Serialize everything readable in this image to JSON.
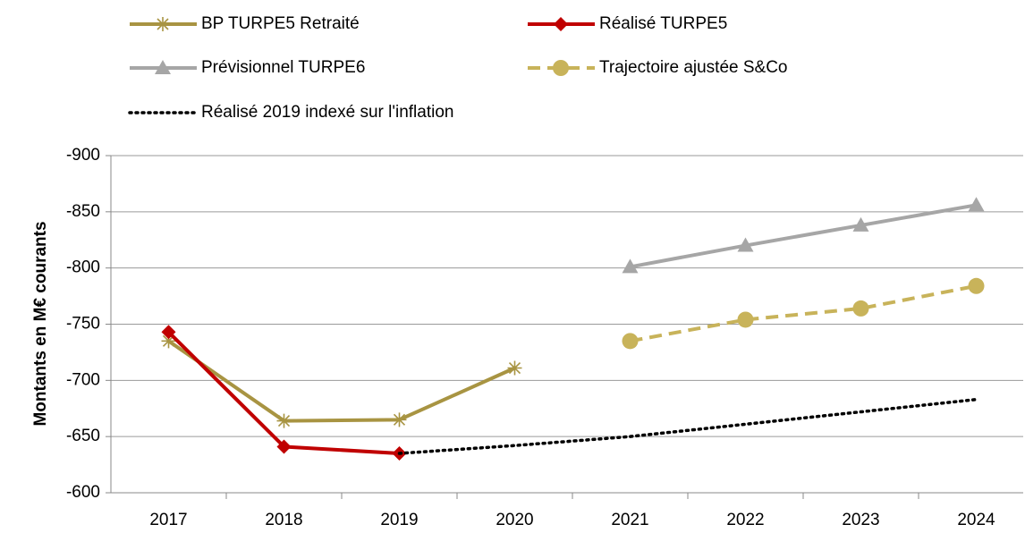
{
  "chart_data": {
    "type": "line",
    "y_label": "Montants en M€ courants",
    "categories": [
      "2017",
      "2018",
      "2019",
      "2020",
      "2021",
      "2022",
      "2023",
      "2024"
    ],
    "ylim": [
      -600,
      -900
    ],
    "yticks": [
      -900,
      -850,
      -800,
      -750,
      -700,
      -650,
      -600
    ],
    "grid": true,
    "series": [
      {
        "name": "BP TURPE5 Retraité",
        "color": "#a89442",
        "marker": "star",
        "dash": "solid",
        "values": [
          -735,
          -664,
          -665,
          -711,
          null,
          null,
          null,
          null
        ]
      },
      {
        "name": "Réalisé TURPE5",
        "color": "#c00000",
        "marker": "diamond",
        "dash": "solid",
        "values": [
          -743,
          -641,
          -635,
          null,
          null,
          null,
          null,
          null
        ]
      },
      {
        "name": "Prévisionnel TURPE6",
        "color": "#a6a6a6",
        "marker": "triangle",
        "dash": "solid",
        "values": [
          null,
          null,
          null,
          null,
          -801,
          -820,
          -838,
          -856
        ]
      },
      {
        "name": "Trajectoire ajustée S&Co",
        "color": "#c8b35a",
        "marker": "circle",
        "dash": "dashed",
        "values": [
          null,
          null,
          null,
          null,
          -735,
          -754,
          -764,
          -784
        ]
      },
      {
        "name": "Réalisé 2019 indexé sur l'inflation",
        "color": "#000000",
        "marker": "none",
        "dash": "dotted",
        "values": [
          null,
          null,
          -635,
          -642,
          -650,
          -661,
          -672,
          -683
        ]
      }
    ]
  }
}
